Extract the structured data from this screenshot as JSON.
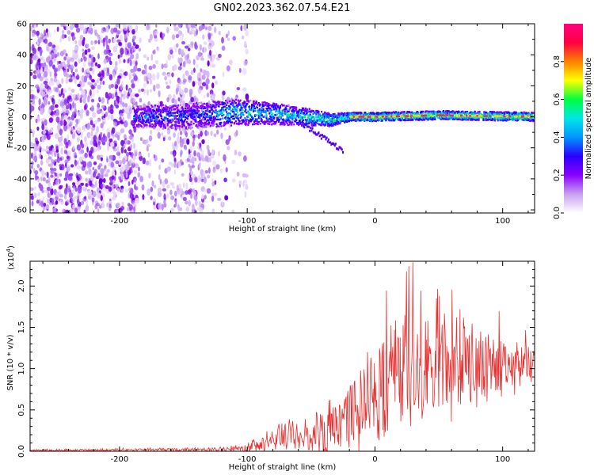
{
  "title": "GN02.2023.362.07.54.E21",
  "chart_data": [
    {
      "type": "heatmap",
      "xlabel": "Height of straight line (km)",
      "ylabel": "Frequency (Hz)",
      "xlim": [
        -270,
        125
      ],
      "ylim": [
        -62,
        60
      ],
      "xticks": [
        -200,
        -100,
        0,
        100
      ],
      "yticks": [
        -60,
        -40,
        -20,
        0,
        20,
        40,
        60
      ],
      "colorbar": {
        "label": "Normalized spectral amplitude",
        "range": [
          0,
          1
        ],
        "ticks": [
          "0.0",
          "0.2",
          "0.4",
          "0.6",
          "0.8"
        ],
        "colors": [
          "#ffffff",
          "#c8a0f0",
          "#8a00ff",
          "#2b00ff",
          "#0096ff",
          "#00e6e6",
          "#00ff40",
          "#ffff00",
          "#ff8000",
          "#ff0040",
          "#ff0080"
        ]
      },
      "ridge": [
        {
          "x": -185,
          "center": 0,
          "half_width": 5
        },
        {
          "x": -150,
          "center": 0,
          "half_width": 6
        },
        {
          "x": -110,
          "center": 3,
          "half_width": 6
        },
        {
          "x": -80,
          "center": 2,
          "half_width": 5
        },
        {
          "x": -55,
          "center": 0,
          "half_width": 4
        },
        {
          "x": -35,
          "center": -2,
          "half_width": 3
        },
        {
          "x": -20,
          "center": 0,
          "half_width": 2
        },
        {
          "x": 0,
          "center": 0,
          "half_width": 2
        },
        {
          "x": 50,
          "center": 1,
          "half_width": 2
        },
        {
          "x": 125,
          "center": 0,
          "half_width": 2
        }
      ]
    },
    {
      "type": "line",
      "xlabel": "Height of straight line (km)",
      "ylabel": "SNR (10 * v/v)",
      "y_multiplier": "(x10",
      "y_multiplier_exp": "4",
      "y_multiplier_close": ")",
      "xlim": [
        -270,
        125
      ],
      "ylim": [
        0,
        2.3
      ],
      "xticks": [
        -200,
        -100,
        0,
        100
      ],
      "yticks": [
        "0.0",
        "0.5",
        "1.0",
        "1.5",
        "2.0"
      ],
      "color": "#e83030",
      "envelope": [
        {
          "x": -270,
          "base": 0.01,
          "amp": 0.02
        },
        {
          "x": -130,
          "base": 0.02,
          "amp": 0.03
        },
        {
          "x": -105,
          "base": 0.03,
          "amp": 0.06
        },
        {
          "x": -90,
          "base": 0.08,
          "amp": 0.12
        },
        {
          "x": -70,
          "base": 0.2,
          "amp": 0.25
        },
        {
          "x": -55,
          "base": 0.18,
          "amp": 0.3
        },
        {
          "x": -40,
          "base": 0.25,
          "amp": 0.45
        },
        {
          "x": -20,
          "base": 0.45,
          "amp": 0.6
        },
        {
          "x": 0,
          "base": 0.7,
          "amp": 0.75
        },
        {
          "x": 20,
          "base": 0.9,
          "amp": 0.9
        },
        {
          "x": 40,
          "base": 1.0,
          "amp": 1.1
        },
        {
          "x": 60,
          "base": 1.05,
          "amp": 0.9
        },
        {
          "x": 90,
          "base": 1.0,
          "amp": 0.55
        },
        {
          "x": 125,
          "base": 1.05,
          "amp": 0.25
        }
      ]
    }
  ]
}
